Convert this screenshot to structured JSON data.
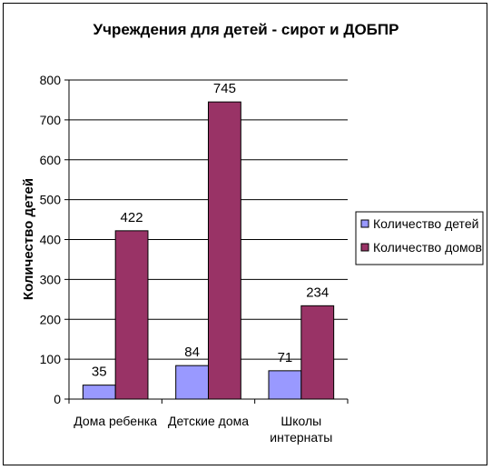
{
  "chart_data": {
    "type": "bar",
    "title": "Учреждения для детей - сирот и ДОБПР",
    "xlabel": "",
    "ylabel": "Количество детей",
    "categories": [
      "Дома ребенка",
      "Детские дома",
      "Школы интернаты"
    ],
    "category_lines": [
      [
        "Дома ребенка"
      ],
      [
        "Детские дома"
      ],
      [
        "Школы",
        "интернаты"
      ]
    ],
    "series": [
      {
        "name": "Количество детей",
        "values": [
          35,
          84,
          71
        ],
        "color": "#9999ff"
      },
      {
        "name": "Количество домов",
        "values": [
          422,
          745,
          234
        ],
        "color": "#993366"
      }
    ],
    "ylim": [
      0,
      800
    ],
    "yticks": [
      0,
      100,
      200,
      300,
      400,
      500,
      600,
      700,
      800
    ],
    "grid": true,
    "legend": "right",
    "data_labels": true
  }
}
